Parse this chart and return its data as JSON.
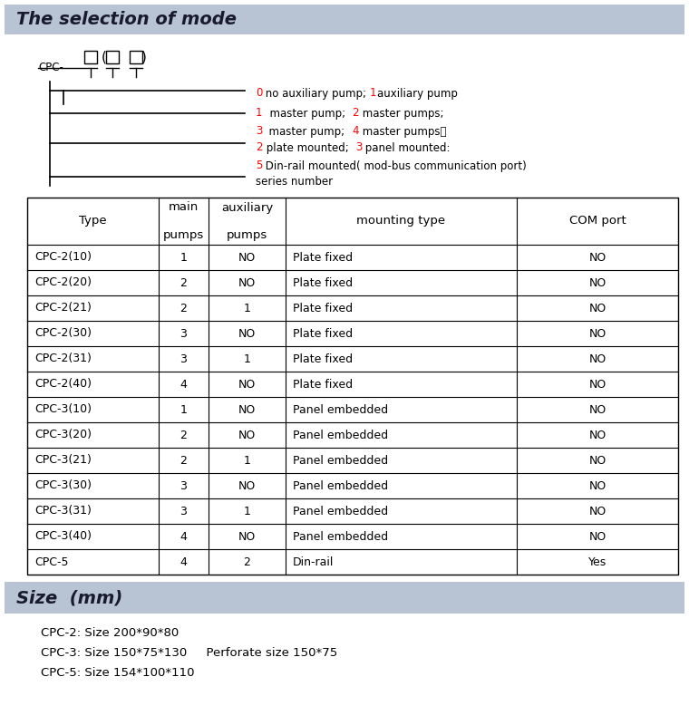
{
  "header1_text": "The selection of mode",
  "header2_text": "Size  (mm)",
  "header_bg": "#b8c4d4",
  "bg_color": "#ffffff",
  "table_rows": [
    [
      "CPC-2(10)",
      "1",
      "NO",
      "Plate fixed",
      "NO"
    ],
    [
      "CPC-2(20)",
      "2",
      "NO",
      "Plate fixed",
      "NO"
    ],
    [
      "CPC-2(21)",
      "2",
      "1",
      "Plate fixed",
      "NO"
    ],
    [
      "CPC-2(30)",
      "3",
      "NO",
      "Plate fixed",
      "NO"
    ],
    [
      "CPC-2(31)",
      "3",
      "1",
      "Plate fixed",
      "NO"
    ],
    [
      "CPC-2(40)",
      "4",
      "NO",
      "Plate fixed",
      "NO"
    ],
    [
      "CPC-3(10)",
      "1",
      "NO",
      "Panel embedded",
      "NO"
    ],
    [
      "CPC-3(20)",
      "2",
      "NO",
      "Panel embedded",
      "NO"
    ],
    [
      "CPC-3(21)",
      "2",
      "1",
      "Panel embedded",
      "NO"
    ],
    [
      "CPC-3(30)",
      "3",
      "NO",
      "Panel embedded",
      "NO"
    ],
    [
      "CPC-3(31)",
      "3",
      "1",
      "Panel embedded",
      "NO"
    ],
    [
      "CPC-3(40)",
      "4",
      "NO",
      "Panel embedded",
      "NO"
    ],
    [
      "CPC-5",
      "4",
      "2",
      "Din-rail",
      "Yes"
    ]
  ],
  "annot_lines": [
    {
      "text": "0 no auxiliary pump; 1auxiliary pump",
      "reds": [
        "0",
        "1"
      ]
    },
    {
      "text": "1  master pump;  2 master pumps;",
      "reds": [
        "1",
        "2"
      ]
    },
    {
      "text": "3  master pump;  4 master pumps。",
      "reds": [
        "3",
        "4"
      ]
    },
    {
      "text": "2 plate mounted;  3 panel mounted:",
      "reds": [
        "2",
        "3"
      ]
    },
    {
      "text": "5 Din-rail mounted( mod-bus communication port)",
      "reds": [
        "5"
      ]
    },
    {
      "text": "series number",
      "reds": []
    }
  ],
  "size_lines": [
    "CPC-2: Size 200*90*80",
    "CPC-3: Size 150*75*130     Perforate size 150*75",
    "CPC-5: Size 154*100*110"
  ]
}
